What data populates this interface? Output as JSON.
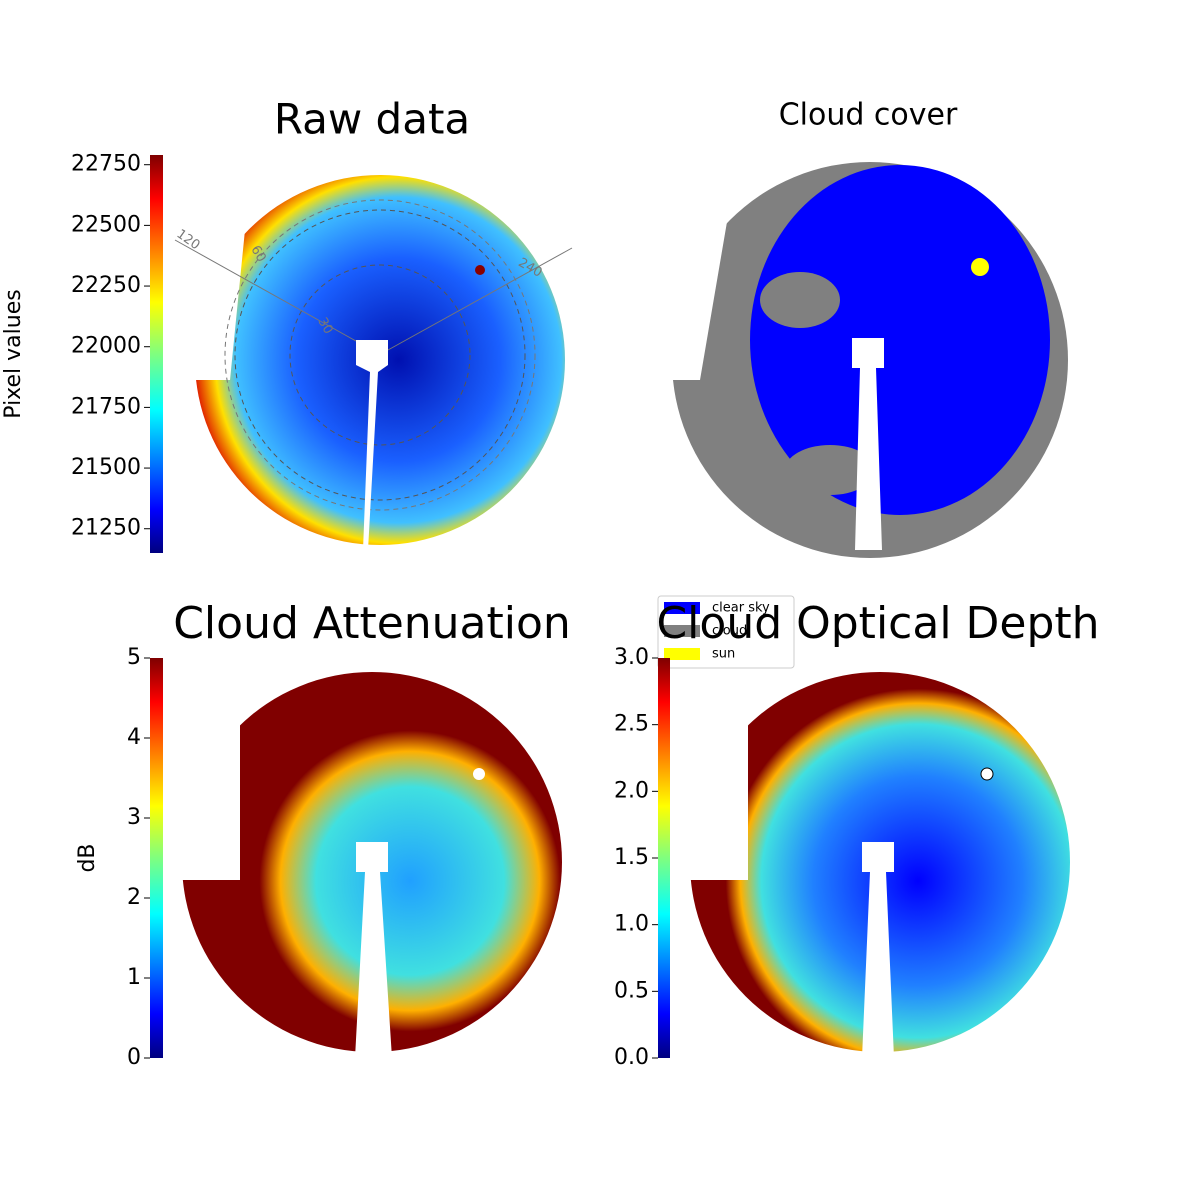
{
  "chart_data": [
    {
      "type": "image",
      "title": "Raw data",
      "colormap": "jet",
      "colorbar_label": "Pixel values",
      "ylim": [
        21150,
        22790
      ],
      "yticks": [
        21250,
        21500,
        21750,
        22000,
        22250,
        22500,
        22750
      ],
      "annotations": [
        "120",
        "60",
        "30",
        "240"
      ]
    },
    {
      "type": "image",
      "title": "Cloud cover",
      "series": [
        {
          "name": "clear sky",
          "color": "#0000ff"
        },
        {
          "name": "cloud",
          "color": "#808080"
        },
        {
          "name": "sun",
          "color": "#ffff00"
        }
      ]
    },
    {
      "type": "image",
      "title": "Cloud Attenuation",
      "colormap": "jet",
      "colorbar_label": "dB",
      "ylim": [
        0,
        5
      ],
      "yticks": [
        0,
        1,
        2,
        3,
        4,
        5
      ]
    },
    {
      "type": "image",
      "title": "Cloud Optical Depth",
      "colormap": "jet",
      "ylim": [
        0,
        3
      ],
      "yticks": [
        {
          "value": 0,
          "label": "0.0"
        },
        {
          "value": 0.5,
          "label": "0.5"
        },
        {
          "value": 1,
          "label": "1.0"
        },
        {
          "value": 1.5,
          "label": "1.5"
        },
        {
          "value": 2,
          "label": "2.0"
        },
        {
          "value": 2.5,
          "label": "2.5"
        },
        {
          "value": 3,
          "label": "3.0"
        }
      ]
    }
  ]
}
